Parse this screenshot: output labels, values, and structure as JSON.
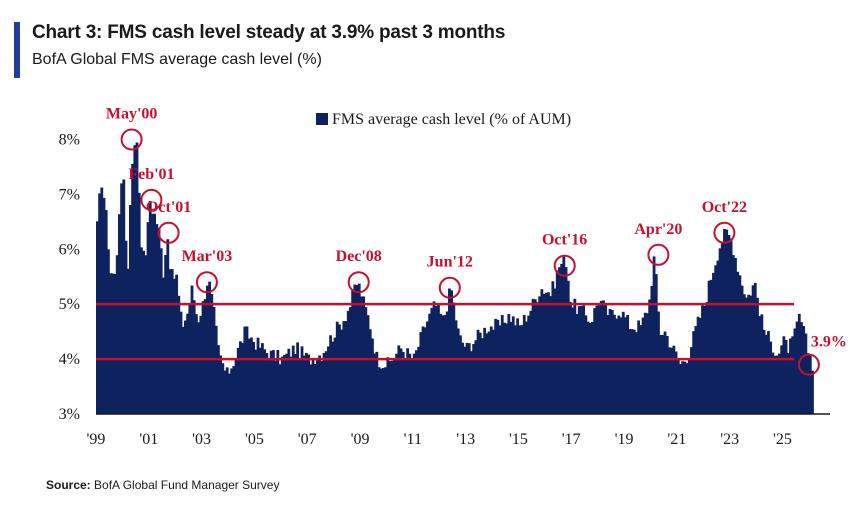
{
  "header": {
    "title": "Chart 3: FMS cash level steady at 3.9% past 3 months",
    "subtitle": "BofA Global FMS average cash level (%)"
  },
  "footer": {
    "source_label": "Source:",
    "source_text": "BofA Global Fund Manager Survey"
  },
  "colors": {
    "bars": "#0f2260",
    "reference_lines": "#c8102e",
    "annotations": "#c8102e",
    "accent": "#1f3d99"
  },
  "chart_data": {
    "type": "bar",
    "title": "",
    "xlabel": "",
    "ylabel": "",
    "ylim": [
      3,
      8.5
    ],
    "xlim": [
      1999,
      2026.8
    ],
    "grid": false,
    "legend_position": "top-center",
    "yticks": [
      3,
      4,
      5,
      6,
      7,
      8
    ],
    "ytick_labels": [
      "3%",
      "4%",
      "5%",
      "6%",
      "7%",
      "8%"
    ],
    "xticks": [
      1999,
      2001,
      2003,
      2005,
      2007,
      2009,
      2011,
      2013,
      2015,
      2017,
      2019,
      2021,
      2023,
      2025
    ],
    "xtick_labels": [
      "'99",
      "'01",
      "'03",
      "'05",
      "'07",
      "'09",
      "'11",
      "'13",
      "'15",
      "'17",
      "'19",
      "'21",
      "'23",
      "'25"
    ],
    "reference_lines": [
      5.0,
      4.0
    ],
    "series": [
      {
        "name": "FMS average cash level (% of AUM)",
        "keypoints_x": [
          1999.0,
          1999.15,
          1999.3,
          1999.5,
          1999.7,
          1999.85,
          2000.0,
          2000.15,
          2000.3,
          2000.5,
          2000.7,
          2000.85,
          2001.0,
          2001.1,
          2001.2,
          2001.35,
          2001.5,
          2001.65,
          2001.8,
          2002.0,
          2002.2,
          2002.4,
          2002.6,
          2002.8,
          2003.0,
          2003.2,
          2003.4,
          2003.6,
          2003.75,
          2003.9,
          2004.2,
          2004.6,
          2005.0,
          2005.5,
          2006.0,
          2006.5,
          2007.0,
          2007.5,
          2008.0,
          2008.3,
          2008.6,
          2008.8,
          2008.95,
          2009.1,
          2009.3,
          2009.6,
          2010.0,
          2010.5,
          2011.0,
          2011.4,
          2011.8,
          2012.1,
          2012.4,
          2012.7,
          2013.0,
          2013.4,
          2013.8,
          2014.2,
          2014.6,
          2015.0,
          2015.4,
          2015.8,
          2016.2,
          2016.5,
          2016.75,
          2016.95,
          2017.3,
          2017.7,
          2018.0,
          2018.4,
          2018.8,
          2019.2,
          2019.6,
          2019.9,
          2020.1,
          2020.3,
          2020.5,
          2020.8,
          2021.1,
          2021.4,
          2021.7,
          2022.0,
          2022.3,
          2022.6,
          2022.8,
          2023.0,
          2023.3,
          2023.6,
          2023.9,
          2024.2,
          2024.5,
          2024.8,
          2025.0,
          2025.2,
          2025.4,
          2025.6,
          2025.9,
          2026.1
        ],
        "keypoints_y": [
          6.4,
          7.3,
          6.8,
          5.6,
          5.5,
          6.9,
          7.3,
          5.4,
          7.6,
          8.0,
          5.8,
          6.0,
          6.9,
          6.7,
          6.6,
          6.3,
          5.6,
          6.3,
          5.5,
          5.5,
          4.6,
          4.8,
          5.3,
          4.7,
          5.0,
          5.5,
          4.9,
          4.1,
          3.9,
          3.7,
          4.0,
          4.5,
          4.3,
          4.1,
          4.0,
          4.2,
          4.0,
          4.1,
          4.5,
          4.7,
          5.0,
          5.4,
          5.3,
          5.0,
          4.7,
          4.0,
          3.9,
          4.2,
          4.0,
          4.6,
          5.0,
          4.7,
          5.3,
          4.4,
          4.2,
          4.4,
          4.6,
          4.6,
          4.8,
          4.6,
          4.9,
          5.3,
          5.2,
          5.7,
          5.8,
          5.0,
          4.9,
          4.7,
          5.1,
          4.8,
          4.9,
          4.6,
          4.6,
          5.0,
          5.9,
          4.5,
          4.5,
          4.2,
          3.9,
          4.1,
          4.6,
          5.0,
          5.6,
          6.1,
          6.3,
          6.2,
          5.6,
          5.1,
          5.4,
          4.6,
          4.3,
          4.1,
          4.3,
          4.2,
          4.4,
          4.8,
          4.2,
          3.9
        ]
      }
    ],
    "annotations": [
      {
        "label": "May'00",
        "x": 2000.35,
        "y": 8.0
      },
      {
        "label": "Feb'01",
        "x": 2001.1,
        "y": 6.9
      },
      {
        "label": "Oct'01",
        "x": 2001.75,
        "y": 6.3
      },
      {
        "label": "Mar'03",
        "x": 2003.2,
        "y": 5.4
      },
      {
        "label": "Dec'08",
        "x": 2008.95,
        "y": 5.4
      },
      {
        "label": "Jun'12",
        "x": 2012.4,
        "y": 5.3
      },
      {
        "label": "Oct'16",
        "x": 2016.75,
        "y": 5.7
      },
      {
        "label": "Apr'20",
        "x": 2020.3,
        "y": 5.9
      },
      {
        "label": "Oct'22",
        "x": 2022.8,
        "y": 6.3
      },
      {
        "label": "3.9%",
        "x": 2026.0,
        "y": 3.9
      }
    ]
  }
}
